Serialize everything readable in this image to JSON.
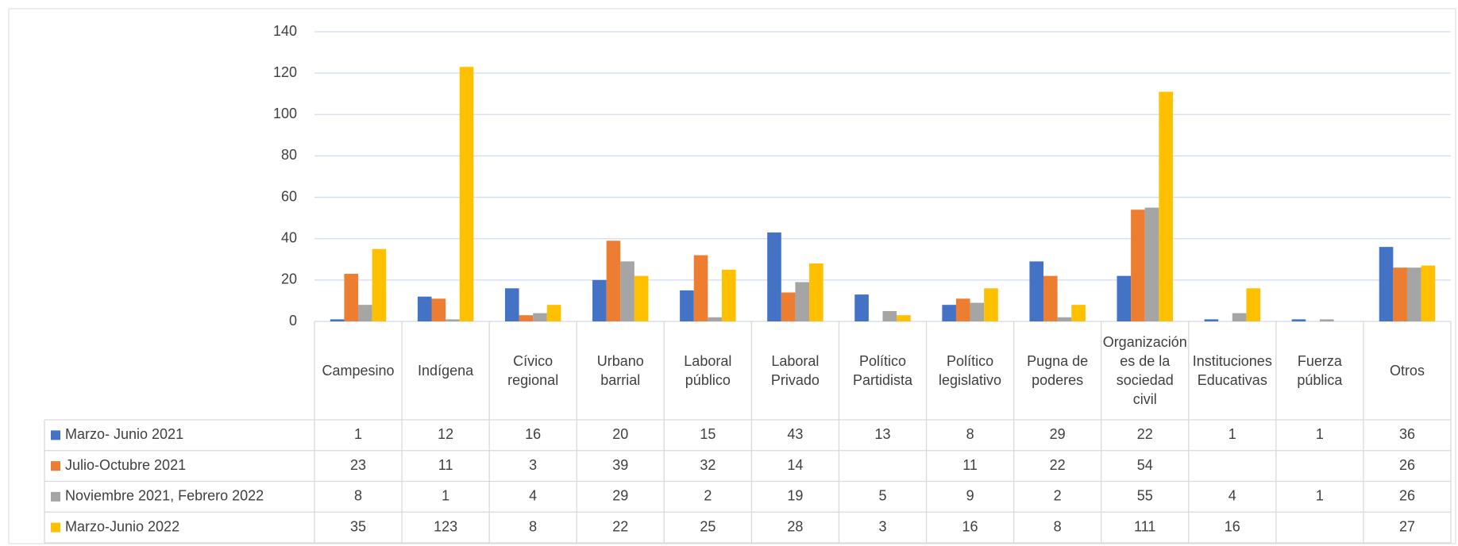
{
  "chart_data": {
    "type": "bar",
    "categories": [
      "Campesino",
      "Indígena",
      "Cívico regional",
      "Urbano barrial",
      "Laboral público",
      "Laboral Privado",
      "Político Partidista",
      "Político legislativo",
      "Pugna de poderes",
      "Organizaciónes de la sociedad civil",
      "Instituciones Educativas",
      "Fuerza pública",
      "Otros"
    ],
    "series": [
      {
        "name": "Marzo- Junio 2021",
        "color": "#4472c4",
        "values": [
          1,
          12,
          16,
          20,
          15,
          43,
          13,
          8,
          29,
          22,
          1,
          1,
          36
        ]
      },
      {
        "name": "Julio-Octubre 2021",
        "color": "#ed7d31",
        "values": [
          23,
          11,
          3,
          39,
          32,
          14,
          null,
          11,
          22,
          54,
          null,
          null,
          26
        ]
      },
      {
        "name": "Noviembre 2021, Febrero 2022",
        "color": "#a5a5a5",
        "values": [
          8,
          1,
          4,
          29,
          2,
          19,
          5,
          9,
          2,
          55,
          4,
          1,
          26
        ]
      },
      {
        "name": "Marzo-Junio 2022",
        "color": "#ffc000",
        "values": [
          35,
          123,
          8,
          22,
          25,
          28,
          3,
          16,
          8,
          111,
          16,
          null,
          27
        ]
      }
    ],
    "ylim": [
      0,
      140
    ],
    "yticks": [
      0,
      20,
      40,
      60,
      80,
      100,
      120,
      140
    ],
    "grid": true
  }
}
